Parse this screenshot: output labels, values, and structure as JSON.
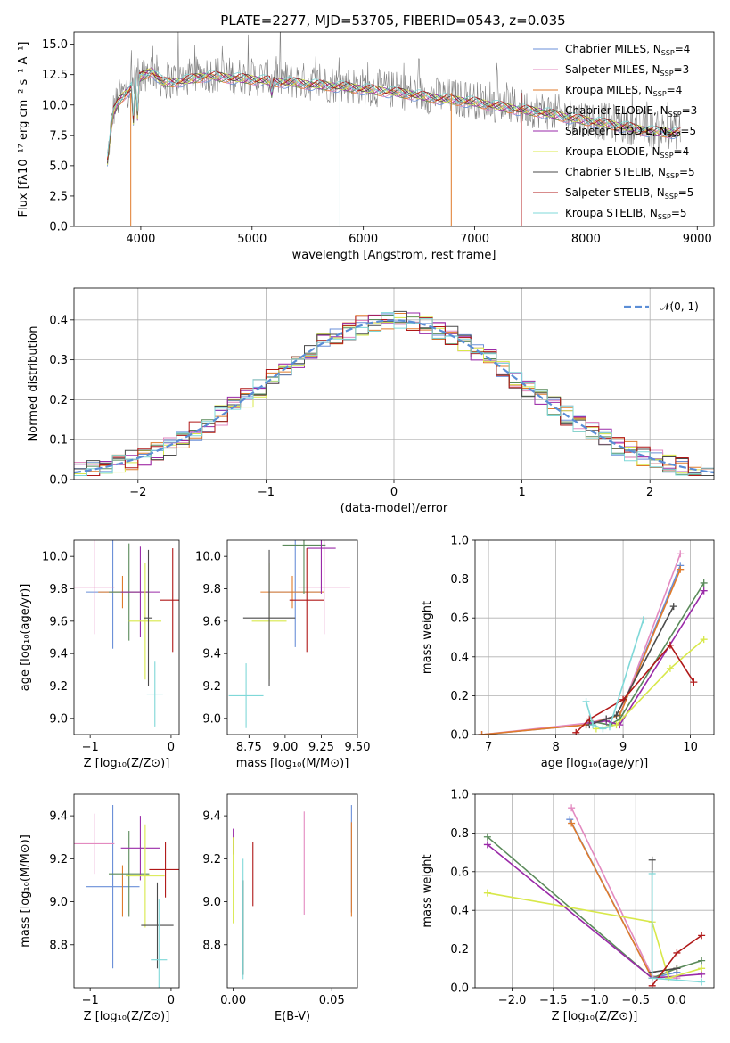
{
  "figure_title": "PLATE=2277, MJD=53705, FIBERID=0543, z=0.035",
  "colors": {
    "Chabrier MILES": "#6a8fd8",
    "Salpeter MILES": "#e38ac0",
    "Kroupa MILES": "#e07b2b",
    "Chabrier ELODIE": "#5a8a5a",
    "Salpeter ELODIE": "#9a2aa8",
    "Kroupa ELODIE": "#d8e84a",
    "Chabrier STELIB": "#4a4a4a",
    "Salpeter STELIB": "#b01818",
    "Kroupa STELIB": "#7fd8d8",
    "observed": "#7f7f7f",
    "normal": "#5b8ed6"
  },
  "chart_data": [
    {
      "id": "spectrum",
      "type": "line",
      "title": "PLATE=2277, MJD=53705, FIBERID=0543, z=0.035",
      "xlabel": "wavelength [Angstrom, rest frame]",
      "ylabel": "Flux [fλ10⁻¹⁷ erg cm⁻² s⁻¹ A⁻¹]",
      "xlim": [
        3400,
        9150
      ],
      "ylim": [
        0,
        16
      ],
      "xticks": [
        4000,
        5000,
        6000,
        7000,
        8000,
        9000
      ],
      "yticks": [
        0.0,
        2.5,
        5.0,
        7.5,
        10.0,
        12.5,
        15.0
      ],
      "legend_position": "top-right",
      "legend": [
        {
          "name": "Chabrier MILES",
          "nssp": "4"
        },
        {
          "name": "Salpeter MILES",
          "nssp": "3"
        },
        {
          "name": "Kroupa MILES",
          "nssp": "4"
        },
        {
          "name": "Chabrier ELODIE",
          "nssp": "3"
        },
        {
          "name": "Salpeter ELODIE",
          "nssp": "5"
        },
        {
          "name": "Kroupa ELODIE",
          "nssp": "4"
        },
        {
          "name": "Chabrier STELIB",
          "nssp": "5"
        },
        {
          "name": "Salpeter STELIB",
          "nssp": "5"
        },
        {
          "name": "Kroupa STELIB",
          "nssp": "5"
        }
      ],
      "observed_envelope": [
        [
          3700,
          6.5
        ],
        [
          3750,
          10.5
        ],
        [
          3800,
          11.5
        ],
        [
          3900,
          12.5
        ],
        [
          4000,
          13.5
        ],
        [
          4100,
          14.0
        ],
        [
          4200,
          13.0
        ],
        [
          4400,
          13.2
        ],
        [
          4600,
          13.6
        ],
        [
          4800,
          13.4
        ],
        [
          5000,
          13.3
        ],
        [
          5200,
          13.1
        ],
        [
          5400,
          13.0
        ],
        [
          5600,
          12.8
        ],
        [
          5800,
          12.7
        ],
        [
          6000,
          12.5
        ],
        [
          6200,
          12.3
        ],
        [
          6400,
          12.1
        ],
        [
          6600,
          11.8
        ],
        [
          6800,
          11.6
        ],
        [
          7000,
          11.4
        ],
        [
          7200,
          11.1
        ],
        [
          7400,
          10.8
        ],
        [
          7600,
          10.6
        ],
        [
          7800,
          10.2
        ],
        [
          8000,
          9.9
        ],
        [
          8200,
          9.6
        ],
        [
          8400,
          9.3
        ],
        [
          8600,
          9.0
        ],
        [
          8800,
          8.9
        ],
        [
          8850,
          8.9
        ]
      ],
      "drops": [
        [
          3910,
          "Kroupa MILES"
        ],
        [
          5790,
          "Kroupa STELIB"
        ],
        [
          6790,
          "Kroupa MILES"
        ],
        [
          7420,
          "Salpeter STELIB"
        ]
      ]
    },
    {
      "id": "residuals",
      "type": "bar",
      "xlabel": "(data-model)/error",
      "ylabel": "Normed distribution",
      "xlim": [
        -2.5,
        2.5
      ],
      "ylim": [
        0,
        0.48
      ],
      "xticks": [
        -2,
        -1,
        0,
        1,
        2
      ],
      "yticks": [
        0.0,
        0.1,
        0.2,
        0.3,
        0.4
      ],
      "grid": true,
      "legend_position": "top-right",
      "normal_label": "𝒩(0, 1)",
      "bin_width": 0.1,
      "bin_start": -2.5
    },
    {
      "id": "z-age",
      "type": "scatter",
      "xlabel": "Z [log₁₀(Z/Z⊙)]",
      "ylabel": "age  [log₁₀(age/yr)]",
      "xlim": [
        -1.2,
        0.1
      ],
      "ylim": [
        8.9,
        10.1
      ],
      "xticks": [
        -1,
        0
      ],
      "yticks": [
        9.0,
        9.2,
        9.4,
        9.6,
        9.8,
        10.0
      ],
      "points": [
        {
          "model": "Chabrier MILES",
          "x": -0.72,
          "y": 9.78,
          "xerr": 0.33,
          "yerr": 0.35
        },
        {
          "model": "Salpeter MILES",
          "x": -0.95,
          "y": 9.81,
          "xerr": 0.25,
          "yerr": 0.29
        },
        {
          "model": "Kroupa MILES",
          "x": -0.6,
          "y": 9.78,
          "xerr": 0.3,
          "yerr": 0.1
        },
        {
          "model": "Chabrier ELODIE",
          "x": -0.52,
          "y": 9.78,
          "xerr": 0.25,
          "yerr": 0.3
        },
        {
          "model": "Salpeter ELODIE",
          "x": -0.38,
          "y": 9.78,
          "xerr": 0.24,
          "yerr": 0.28
        },
        {
          "model": "Kroupa ELODIE",
          "x": -0.32,
          "y": 9.6,
          "xerr": 0.2,
          "yerr": 0.36
        },
        {
          "model": "Chabrier STELIB",
          "x": -0.28,
          "y": 9.62,
          "xerr": 0.05,
          "yerr": 0.42
        },
        {
          "model": "Salpeter STELIB",
          "x": 0.02,
          "y": 9.73,
          "xerr": 0.16,
          "yerr": 0.32
        },
        {
          "model": "Kroupa STELIB",
          "x": -0.2,
          "y": 9.15,
          "xerr": 0.1,
          "yerr": 0.2
        }
      ]
    },
    {
      "id": "mass-age",
      "type": "scatter",
      "xlabel": "mass [log₁₀(M/M⊙)]",
      "ylabel": "",
      "xlim": [
        8.6,
        9.5
      ],
      "ylim": [
        8.9,
        10.1
      ],
      "xticks": [
        8.75,
        9.0,
        9.25,
        9.5
      ],
      "yticks": [
        9.0,
        9.2,
        9.4,
        9.6,
        9.8,
        10.0
      ],
      "points": [
        {
          "model": "Chabrier MILES",
          "x": 9.07,
          "y": 9.78,
          "xerr": 0.18,
          "yerr": 0.34
        },
        {
          "model": "Salpeter MILES",
          "x": 9.27,
          "y": 9.81,
          "xerr": 0.18,
          "yerr": 0.29
        },
        {
          "model": "Kroupa MILES",
          "x": 9.05,
          "y": 9.78,
          "xerr": 0.22,
          "yerr": 0.1
        },
        {
          "model": "Chabrier ELODIE",
          "x": 9.13,
          "y": 10.07,
          "xerr": 0.15,
          "yerr": 0.3
        },
        {
          "model": "Salpeter ELODIE",
          "x": 9.25,
          "y": 10.05,
          "xerr": 0.1,
          "yerr": 0.28
        },
        {
          "model": "Kroupa ELODIE",
          "x": 8.89,
          "y": 9.6,
          "xerr": 0.12,
          "yerr": 0.36
        },
        {
          "model": "Chabrier STELIB",
          "x": 8.89,
          "y": 9.62,
          "xerr": 0.18,
          "yerr": 0.42
        },
        {
          "model": "Salpeter STELIB",
          "x": 9.15,
          "y": 9.73,
          "xerr": 0.12,
          "yerr": 0.32
        },
        {
          "model": "Kroupa STELIB",
          "x": 8.73,
          "y": 9.14,
          "xerr": 0.12,
          "yerr": 0.2
        }
      ]
    },
    {
      "id": "weights-age",
      "type": "line",
      "xlabel": "age  [log₁₀(age/yr)]",
      "ylabel": "mass weight",
      "xlim": [
        6.8,
        10.35
      ],
      "ylim": [
        0,
        1
      ],
      "xticks": [
        7,
        8,
        9,
        10
      ],
      "yticks": [
        0.0,
        0.2,
        0.4,
        0.6,
        0.8,
        1.0
      ],
      "grid": true,
      "series": [
        {
          "model": "Chabrier MILES",
          "x": [
            6.9,
            8.45,
            8.95,
            9.85
          ],
          "y": [
            0.0,
            0.05,
            0.1,
            0.87
          ]
        },
        {
          "model": "Salpeter MILES",
          "x": [
            6.9,
            8.5,
            8.95,
            9.85
          ],
          "y": [
            0.0,
            0.06,
            0.1,
            0.93
          ]
        },
        {
          "model": "Kroupa MILES",
          "x": [
            6.9,
            8.45,
            8.95,
            9.85
          ],
          "y": [
            0.0,
            0.05,
            0.1,
            0.85
          ]
        },
        {
          "model": "Chabrier ELODIE",
          "x": [
            8.5,
            8.8,
            8.95,
            10.2
          ],
          "y": [
            0.07,
            0.05,
            0.08,
            0.78
          ]
        },
        {
          "model": "Salpeter ELODIE",
          "x": [
            8.5,
            8.75,
            8.95,
            10.2
          ],
          "y": [
            0.06,
            0.07,
            0.05,
            0.74
          ]
        },
        {
          "model": "Kroupa ELODIE",
          "x": [
            8.6,
            8.9,
            9.7,
            10.2
          ],
          "y": [
            0.03,
            0.05,
            0.34,
            0.49
          ]
        },
        {
          "model": "Chabrier STELIB",
          "x": [
            8.5,
            8.75,
            8.9,
            9.75
          ],
          "y": [
            0.05,
            0.08,
            0.1,
            0.66
          ]
        },
        {
          "model": "Salpeter STELIB",
          "x": [
            8.3,
            8.5,
            9.0,
            9.7,
            10.05
          ],
          "y": [
            0.01,
            0.08,
            0.18,
            0.46,
            0.27
          ]
        },
        {
          "model": "Kroupa STELIB",
          "x": [
            8.45,
            8.55,
            8.7,
            8.8,
            9.3
          ],
          "y": [
            0.17,
            0.05,
            0.03,
            0.04,
            0.59
          ]
        }
      ]
    },
    {
      "id": "z-mass",
      "type": "scatter",
      "xlabel": "Z [log₁₀(Z/Z⊙)]",
      "ylabel": "mass [log₁₀(M/M⊙)]",
      "xlim": [
        -1.2,
        0.1
      ],
      "ylim": [
        8.6,
        9.5
      ],
      "xticks": [
        -1,
        0
      ],
      "yticks": [
        8.8,
        9.0,
        9.2,
        9.4
      ],
      "points": [
        {
          "model": "Chabrier MILES",
          "x": -0.72,
          "y": 9.07,
          "xerr": 0.33,
          "yerr": 0.38
        },
        {
          "model": "Salpeter MILES",
          "x": -0.95,
          "y": 9.27,
          "xerr": 0.25,
          "yerr": 0.14
        },
        {
          "model": "Kroupa MILES",
          "x": -0.6,
          "y": 9.05,
          "xerr": 0.3,
          "yerr": 0.12
        },
        {
          "model": "Chabrier ELODIE",
          "x": -0.52,
          "y": 9.13,
          "xerr": 0.25,
          "yerr": 0.2
        },
        {
          "model": "Salpeter ELODIE",
          "x": -0.38,
          "y": 9.25,
          "xerr": 0.24,
          "yerr": 0.15
        },
        {
          "model": "Kroupa ELODIE",
          "x": -0.32,
          "y": 9.12,
          "xerr": 0.24,
          "yerr": 0.24
        },
        {
          "model": "Chabrier STELIB",
          "x": -0.17,
          "y": 8.89,
          "xerr": 0.2,
          "yerr": 0.2
        },
        {
          "model": "Salpeter STELIB",
          "x": -0.07,
          "y": 9.15,
          "xerr": 0.2,
          "yerr": 0.13
        },
        {
          "model": "Kroupa STELIB",
          "x": -0.15,
          "y": 8.73,
          "xerr": 0.1,
          "yerr": 0.28
        }
      ]
    },
    {
      "id": "ebv-mass",
      "type": "scatter",
      "xlabel": "E(B-V)",
      "ylabel": "",
      "xlim": [
        -0.003,
        0.063
      ],
      "ylim": [
        8.6,
        9.5
      ],
      "xticks": [
        0.0,
        0.05
      ],
      "yticks": [
        8.8,
        9.0,
        9.2,
        9.4
      ],
      "points": [
        {
          "model": "Chabrier MILES",
          "x": 0.06,
          "y": 9.2,
          "yerr": 0.25
        },
        {
          "model": "Salpeter MILES",
          "x": 0.036,
          "y": 9.18,
          "yerr": 0.24
        },
        {
          "model": "Kroupa MILES",
          "x": 0.06,
          "y": 9.15,
          "yerr": 0.22
        },
        {
          "model": "Chabrier ELODIE",
          "x": 0.005,
          "y": 8.88,
          "yerr": 0.22
        },
        {
          "model": "Salpeter ELODIE",
          "x": 0.0,
          "y": 9.28,
          "yerr": 0.06
        },
        {
          "model": "Kroupa ELODIE",
          "x": 0.0,
          "y": 9.1,
          "yerr": 0.2
        },
        {
          "model": "Chabrier STELIB",
          "x": 0.005,
          "y": 8.88,
          "yerr": 0.22
        },
        {
          "model": "Salpeter STELIB",
          "x": 0.01,
          "y": 9.13,
          "yerr": 0.15
        },
        {
          "model": "Kroupa STELIB",
          "x": 0.005,
          "y": 8.92,
          "yerr": 0.28
        }
      ]
    },
    {
      "id": "weights-z",
      "type": "line",
      "xlabel": "Z [log₁₀(Z/Z⊙)]",
      "ylabel": "mass weight",
      "xlim": [
        -2.45,
        0.45
      ],
      "ylim": [
        0,
        1
      ],
      "xticks": [
        -2.0,
        -1.5,
        -1.0,
        -0.5,
        0.0
      ],
      "yticks": [
        0.0,
        0.2,
        0.4,
        0.6,
        0.8,
        1.0
      ],
      "grid": true,
      "series": [
        {
          "model": "Chabrier MILES",
          "x": [
            -1.3,
            -0.3,
            0.0
          ],
          "y": [
            0.87,
            0.05,
            0.08
          ]
        },
        {
          "model": "Salpeter MILES",
          "x": [
            -1.28,
            -0.3,
            0.0
          ],
          "y": [
            0.93,
            0.06,
            0.05
          ]
        },
        {
          "model": "Kroupa MILES",
          "x": [
            -1.28,
            -0.3,
            0.0
          ],
          "y": [
            0.85,
            0.05,
            0.1
          ]
        },
        {
          "model": "Chabrier ELODIE",
          "x": [
            -2.3,
            -0.3,
            0.0,
            0.3
          ],
          "y": [
            0.78,
            0.05,
            0.1,
            0.14
          ]
        },
        {
          "model": "Salpeter ELODIE",
          "x": [
            -2.3,
            -0.3,
            0.0,
            0.3
          ],
          "y": [
            0.74,
            0.05,
            0.06,
            0.07
          ]
        },
        {
          "model": "Kroupa ELODIE",
          "x": [
            -2.3,
            -0.3,
            -0.1,
            0.3
          ],
          "y": [
            0.49,
            0.34,
            0.05,
            0.1
          ]
        },
        {
          "model": "Chabrier STELIB",
          "x": [
            -0.3,
            -0.3,
            0.0
          ],
          "y": [
            0.66,
            0.08,
            0.1
          ]
        },
        {
          "model": "Salpeter STELIB",
          "x": [
            -0.3,
            0.0,
            0.3
          ],
          "y": [
            0.01,
            0.18,
            0.27
          ]
        },
        {
          "model": "Kroupa STELIB",
          "x": [
            -0.3,
            -0.3,
            0.3
          ],
          "y": [
            0.59,
            0.05,
            0.03
          ]
        }
      ]
    }
  ]
}
